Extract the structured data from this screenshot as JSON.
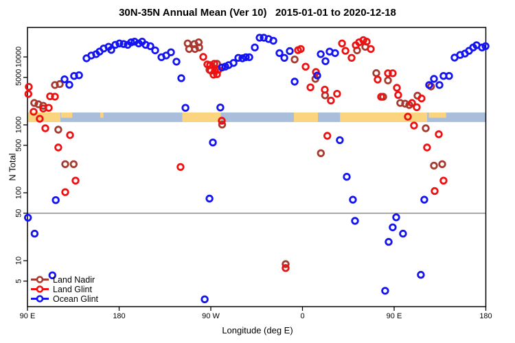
{
  "chart_data": {
    "type": "scatter",
    "title": "30N-35N Annual Mean (Ver 10)   2015-01-01 to 2020-12-18",
    "xlabel": "Longitude (deg E)",
    "ylabel": "N Total",
    "x_axis": {
      "min": 90,
      "max": 540,
      "ticks": [
        {
          "v": 90,
          "label": "90 E"
        },
        {
          "v": 180,
          "label": "180"
        },
        {
          "v": 270,
          "label": "90 W"
        },
        {
          "v": 360,
          "label": "0"
        },
        {
          "v": 450,
          "label": "90 E"
        },
        {
          "v": 540,
          "label": "180"
        }
      ]
    },
    "y_axis": {
      "scale": "log",
      "min": 2.1,
      "max": 27400,
      "ticks": [
        5,
        10,
        50,
        100,
        500,
        1000,
        5000,
        10000
      ]
    },
    "reference_line": {
      "n": 50,
      "color": "#808080"
    },
    "map_band": {
      "n_top": 1520,
      "n_bottom": 1100,
      "ocean_color": "#A9BEDB",
      "land_color": "#FBD480",
      "land_segments": [
        {
          "from": 90,
          "to": 122.4
        },
        {
          "from": 123,
          "to": 134,
          "partial": true
        },
        {
          "from": 161.5,
          "to": 164.5,
          "partial": true
        },
        {
          "from": 242,
          "to": 280
        },
        {
          "from": 351.6,
          "to": 375.2
        },
        {
          "from": 396.9,
          "to": 482.4
        },
        {
          "from": 484,
          "to": 501,
          "partial": true
        }
      ]
    },
    "legend": {
      "position": "bottom-left",
      "items": [
        {
          "label": "Land Nadir",
          "color": "#A53A30"
        },
        {
          "label": "Land Glint",
          "color": "#EE1111"
        },
        {
          "label": "Ocean Glint",
          "color": "#1414F0"
        }
      ]
    },
    "series": [
      {
        "name": "Land Nadir",
        "color": "#A53A30",
        "points": [
          [
            117,
            3860
          ],
          [
            121.7,
            3980
          ],
          [
            96.7,
            2100
          ],
          [
            100.8,
            2010
          ],
          [
            105.5,
            1910
          ],
          [
            120.3,
            850
          ],
          [
            127.1,
            264
          ],
          [
            135.4,
            264
          ],
          [
            247.3,
            15800
          ],
          [
            248.7,
            13100
          ],
          [
            253.8,
            15500
          ],
          [
            254.5,
            13100
          ],
          [
            258.1,
            16400
          ],
          [
            258.6,
            13800
          ],
          [
            276.1,
            7940
          ],
          [
            268.7,
            6470
          ],
          [
            281.1,
            1010
          ],
          [
            352.3,
            9180
          ],
          [
            372.7,
            4750
          ],
          [
            382.2,
            2720
          ],
          [
            378.1,
            383
          ],
          [
            343.5,
            8.9
          ],
          [
            413.6,
            12500
          ],
          [
            421.7,
            14100
          ],
          [
            432.5,
            5770
          ],
          [
            443.9,
            4510
          ],
          [
            439.2,
            2590
          ],
          [
            456,
            2100
          ],
          [
            460.8,
            2050
          ],
          [
            464.8,
            1960
          ],
          [
            472.9,
            2690
          ],
          [
            486.2,
            3680
          ],
          [
            481,
            890
          ],
          [
            489.1,
            251
          ],
          [
            497.2,
            264
          ]
        ]
      },
      {
        "name": "Land Glint",
        "color": "#EE1111",
        "points": [
          [
            91.3,
            3630
          ],
          [
            90.9,
            2850
          ],
          [
            112.2,
            2630
          ],
          [
            117,
            2600
          ],
          [
            105.5,
            1740
          ],
          [
            110.9,
            1780
          ],
          [
            96.1,
            1560
          ],
          [
            102.1,
            1230
          ],
          [
            107.5,
            890
          ],
          [
            120.3,
            464
          ],
          [
            131.8,
            707
          ],
          [
            137.2,
            151
          ],
          [
            127.1,
            102
          ],
          [
            262.6,
            10000
          ],
          [
            266.6,
            7760
          ],
          [
            269.3,
            7590
          ],
          [
            273.4,
            7940
          ],
          [
            270,
            6310
          ],
          [
            274.1,
            6240
          ],
          [
            277.4,
            6470
          ],
          [
            272.7,
            5470
          ],
          [
            276.1,
            5560
          ],
          [
            280.8,
            1150
          ],
          [
            240.3,
            240
          ],
          [
            343.5,
            7.8
          ],
          [
            355.6,
            12600
          ],
          [
            358.3,
            13100
          ],
          [
            363.1,
            7180
          ],
          [
            367.8,
            3570
          ],
          [
            373.2,
            6000
          ],
          [
            381.9,
            3300
          ],
          [
            387.9,
            2280
          ],
          [
            394,
            2870
          ],
          [
            384.4,
            690
          ],
          [
            398.8,
            15800
          ],
          [
            402.2,
            12300
          ],
          [
            408.2,
            9700
          ],
          [
            412.3,
            14900
          ],
          [
            415.6,
            16400
          ],
          [
            419.7,
            17700
          ],
          [
            423,
            16800
          ],
          [
            427.1,
            13100
          ],
          [
            433.8,
            4640
          ],
          [
            443.9,
            5750
          ],
          [
            448.6,
            5750
          ],
          [
            452.7,
            3510
          ],
          [
            454,
            2750
          ],
          [
            437.2,
            2590
          ],
          [
            463.5,
            1320
          ],
          [
            469.5,
            977
          ],
          [
            476.9,
            2450
          ],
          [
            467.5,
            2100
          ],
          [
            472.2,
            1820
          ],
          [
            482.3,
            464
          ],
          [
            493.8,
            727
          ],
          [
            498.5,
            151
          ],
          [
            489.8,
            106
          ]
        ]
      },
      {
        "name": "Ocean Glint",
        "color": "#1414F0",
        "points": [
          [
            90.5,
            43
          ],
          [
            97,
            25
          ],
          [
            114.5,
            6.1
          ],
          [
            117.8,
            78
          ],
          [
            126.4,
            4680
          ],
          [
            131.1,
            3890
          ],
          [
            135.8,
            5250
          ],
          [
            140.6,
            5370
          ],
          [
            148,
            9550
          ],
          [
            152.7,
            10500
          ],
          [
            157.4,
            11000
          ],
          [
            160.8,
            12000
          ],
          [
            164.8,
            13300
          ],
          [
            169.6,
            14100
          ],
          [
            172.3,
            12700
          ],
          [
            176.3,
            15100
          ],
          [
            180.3,
            15800
          ],
          [
            184.4,
            15500
          ],
          [
            188.4,
            15100
          ],
          [
            191.8,
            16400
          ],
          [
            195.2,
            16800
          ],
          [
            199.2,
            15800
          ],
          [
            202.6,
            16800
          ],
          [
            206,
            15100
          ],
          [
            210.7,
            14400
          ],
          [
            215.4,
            12500
          ],
          [
            221.5,
            9900
          ],
          [
            226.2,
            10500
          ],
          [
            230.9,
            11700
          ],
          [
            236.3,
            8510
          ],
          [
            241,
            4860
          ],
          [
            245.1,
            1780
          ],
          [
            264,
            2.7
          ],
          [
            268.7,
            82
          ],
          [
            272,
            550
          ],
          [
            279.4,
            1800
          ],
          [
            281,
            7000
          ],
          [
            284.2,
            7200
          ],
          [
            287.5,
            7590
          ],
          [
            292.3,
            8170
          ],
          [
            297,
            9700
          ],
          [
            301,
            9550
          ],
          [
            304.4,
            9900
          ],
          [
            307.8,
            9900
          ],
          [
            313.2,
            13800
          ],
          [
            317.9,
            19200
          ],
          [
            322,
            19200
          ],
          [
            326.7,
            18400
          ],
          [
            331.4,
            17300
          ],
          [
            337.4,
            11400
          ],
          [
            342.2,
            9700
          ],
          [
            347.5,
            12200
          ],
          [
            352.3,
            4330
          ],
          [
            374.5,
            5330
          ],
          [
            377.9,
            11000
          ],
          [
            382.6,
            8650
          ],
          [
            386.6,
            12000
          ],
          [
            392,
            11400
          ],
          [
            396.7,
            595
          ],
          [
            403.5,
            172
          ],
          [
            409.5,
            79
          ],
          [
            411.6,
            38.5
          ],
          [
            441.2,
            3.6
          ],
          [
            444.6,
            18.9
          ],
          [
            448.6,
            31
          ],
          [
            452,
            43.5
          ],
          [
            458.7,
            25
          ],
          [
            476.2,
            6.2
          ],
          [
            479.6,
            79
          ],
          [
            484.4,
            3860
          ],
          [
            489.1,
            4750
          ],
          [
            494.5,
            3860
          ],
          [
            498.5,
            5250
          ],
          [
            503.9,
            5250
          ],
          [
            509.3,
            9770
          ],
          [
            514.8,
            10700
          ],
          [
            519.5,
            11200
          ],
          [
            523.5,
            12300
          ],
          [
            527.6,
            13800
          ],
          [
            530.9,
            14900
          ],
          [
            536.3,
            13800
          ],
          [
            539.7,
            14400
          ]
        ]
      }
    ]
  }
}
